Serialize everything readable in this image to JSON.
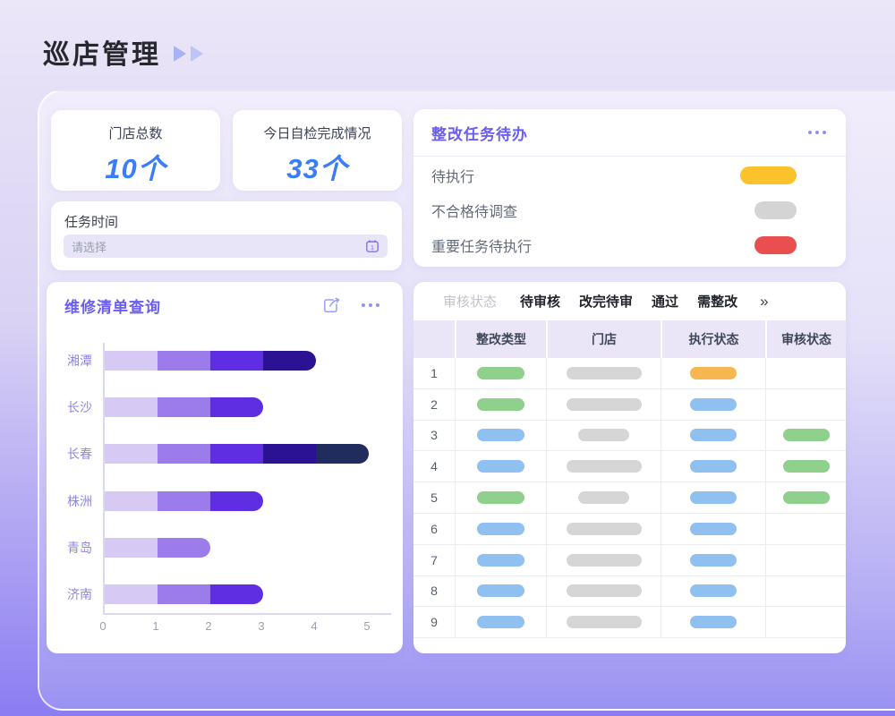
{
  "page": {
    "title": "巡店管理"
  },
  "stats": [
    {
      "label": "门店总数",
      "value": "10个"
    },
    {
      "label": "今日自检完成情况",
      "value": "33个"
    }
  ],
  "task_time": {
    "label": "任务时间",
    "placeholder": "请选择"
  },
  "todo_panel": {
    "title": "整改任务待办",
    "items": [
      {
        "label": "待执行",
        "color": "#fcc22d",
        "pill_width": 63
      },
      {
        "label": "不合格待调查",
        "color": "#d4d4d4",
        "pill_width": 47
      },
      {
        "label": "重要任务待执行",
        "color": "#ea4f4f",
        "pill_width": 47
      }
    ]
  },
  "chart_panel": {
    "title": "维修清单查询",
    "chart_data": {
      "type": "bar",
      "orientation": "horizontal",
      "stacked": true,
      "categories": [
        "湘潭",
        "长沙",
        "长春",
        "株洲",
        "青岛",
        "济南"
      ],
      "series": [
        {
          "name": "segment-1",
          "color": "#d6caf5",
          "values": [
            1,
            1,
            1,
            1,
            1,
            1
          ]
        },
        {
          "name": "segment-2",
          "color": "#9c7ceb",
          "values": [
            1,
            1,
            1,
            1,
            1,
            1
          ]
        },
        {
          "name": "segment-3",
          "color": "#5f2ee2",
          "values": [
            1,
            1,
            1,
            1,
            0,
            1
          ]
        },
        {
          "name": "segment-4",
          "color": "#2a1292",
          "values": [
            1,
            0,
            1,
            0,
            0,
            0
          ]
        },
        {
          "name": "segment-5",
          "color": "#202c5d",
          "values": [
            0,
            0,
            1,
            0,
            0,
            0
          ]
        }
      ],
      "totals": [
        4,
        3,
        5,
        3,
        2,
        3
      ],
      "xlim": [
        0,
        5
      ],
      "x_ticks": [
        "0",
        "1",
        "2",
        "3",
        "4",
        "5"
      ],
      "grid": false,
      "label_color": "#8d86ea"
    }
  },
  "table_panel": {
    "filter_label": "审核状态",
    "tabs": [
      "待审核",
      "改完待审",
      "通过",
      "需整改"
    ],
    "more_icon": "»",
    "columns": [
      "整改类型",
      "门店",
      "执行状态",
      "审核状态"
    ],
    "pill_colors": {
      "green": "#8ed08c",
      "blue": "#90c0f0",
      "gray": "#d6d6d6",
      "orange": "#f6b751"
    },
    "rows": [
      {
        "num": "1",
        "type": "green",
        "store": "wide",
        "exec": "orange",
        "audit": null
      },
      {
        "num": "2",
        "type": "green",
        "store": "wide",
        "exec": "blue",
        "audit": null
      },
      {
        "num": "3",
        "type": "blue",
        "store": "narrow",
        "exec": "blue",
        "audit": "green"
      },
      {
        "num": "4",
        "type": "blue",
        "store": "wide",
        "exec": "blue",
        "audit": "green"
      },
      {
        "num": "5",
        "type": "green",
        "store": "narrow",
        "exec": "blue",
        "audit": "green"
      },
      {
        "num": "6",
        "type": "blue",
        "store": "wide",
        "exec": "blue",
        "audit": null
      },
      {
        "num": "7",
        "type": "blue",
        "store": "wide",
        "exec": "blue",
        "audit": null
      },
      {
        "num": "8",
        "type": "blue",
        "store": "wide",
        "exec": "blue",
        "audit": null
      },
      {
        "num": "9",
        "type": "blue",
        "store": "wide",
        "exec": "blue",
        "audit": null
      }
    ]
  }
}
